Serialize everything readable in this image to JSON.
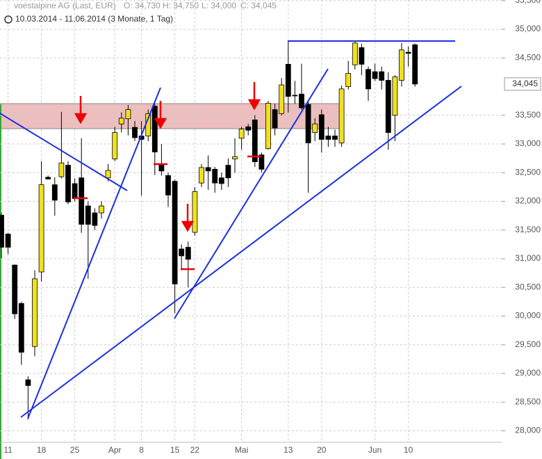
{
  "chart_data": {
    "type": "candlestick",
    "title": "voestalpine AG (Last, EUR)",
    "header_stats": [
      "O: 34,730",
      "H: 34,750",
      "L: 34,000",
      "C: 34,045"
    ],
    "subtitle": "10.03.2014 - 11.06.2014 (3 Monate, 1 Tag)",
    "categories": [
      null,
      "11",
      null,
      null,
      null,
      null,
      "18",
      null,
      null,
      null,
      null,
      "25",
      null,
      null,
      null,
      null,
      null,
      "Apr",
      null,
      null,
      null,
      "8",
      null,
      null,
      null,
      null,
      "15",
      null,
      null,
      "22",
      null,
      null,
      null,
      null,
      null,
      null,
      "Mai",
      null,
      null,
      null,
      null,
      null,
      null,
      "13",
      null,
      null,
      null,
      null,
      "20",
      null,
      null,
      null,
      null,
      null,
      null,
      null,
      "Jun",
      null,
      null,
      null,
      null,
      "10",
      null
    ],
    "open": [
      31760,
      31430,
      30890,
      30220,
      28890,
      29470,
      30770,
      32420,
      32290,
      32430,
      32630,
      32310,
      32410,
      31920,
      31800,
      31800,
      32410,
      32740,
      33350,
      33440,
      33290,
      33140,
      33140,
      33660,
      32650,
      32450,
      32350,
      31170,
      31200,
      31460,
      32320,
      32590,
      32560,
      32410,
      32630,
      32740,
      33100,
      33300,
      33420,
      32810,
      32920,
      33600,
      33530,
      34390,
      33850,
      33870,
      33690,
      33200,
      33510,
      33140,
      33140,
      33020,
      34000,
      34380,
      34680,
      34300,
      34260,
      34260,
      34110,
      33500,
      34110,
      34600,
      34730
    ],
    "high": [
      31800,
      31450,
      30900,
      30250,
      28950,
      30800,
      32700,
      32450,
      32420,
      33560,
      32700,
      32400,
      33100,
      32000,
      31880,
      32000,
      32650,
      33300,
      33550,
      33680,
      33400,
      33400,
      33600,
      33700,
      33000,
      32500,
      32380,
      31250,
      31300,
      32250,
      32650,
      32800,
      32600,
      32500,
      32750,
      33100,
      33300,
      33350,
      33500,
      32850,
      33750,
      33700,
      34150,
      34800,
      34100,
      34400,
      33750,
      33450,
      33600,
      33300,
      33250,
      34020,
      34450,
      34780,
      34750,
      34350,
      34400,
      34350,
      34250,
      34200,
      34760,
      34700,
      34750
    ],
    "low": [
      31000,
      31080,
      29950,
      29150,
      28200,
      29300,
      30600,
      32380,
      31750,
      32400,
      31950,
      32000,
      31450,
      30650,
      31500,
      31700,
      32350,
      32700,
      33200,
      33150,
      33050,
      32100,
      33050,
      32460,
      32450,
      31900,
      30050,
      30800,
      30500,
      31400,
      32250,
      32200,
      32150,
      32200,
      32250,
      32500,
      32900,
      33150,
      32600,
      32500,
      32900,
      33150,
      33500,
      33550,
      33700,
      33600,
      32150,
      33050,
      32850,
      32950,
      32950,
      32950,
      33950,
      34300,
      34200,
      33750,
      34100,
      33950,
      32900,
      33050,
      34000,
      34350,
      34000
    ],
    "close": [
      31200,
      31200,
      30040,
      29370,
      28790,
      30650,
      32290,
      32390,
      32020,
      32670,
      31990,
      32050,
      31600,
      31600,
      31580,
      31920,
      32540,
      33200,
      33450,
      33600,
      33110,
      33080,
      33530,
      32860,
      32530,
      32110,
      30560,
      31050,
      30990,
      32170,
      32590,
      32530,
      32320,
      32310,
      32410,
      32780,
      33260,
      33240,
      32690,
      32560,
      33710,
      33280,
      34030,
      33830,
      33840,
      33630,
      33020,
      33350,
      33080,
      33080,
      33080,
      33960,
      34230,
      34760,
      34390,
      33960,
      34140,
      34110,
      33200,
      34170,
      34640,
      34580,
      34045
    ],
    "up_color": "#f0e020",
    "down_color": "#000000",
    "ylim": [
      27800,
      35510
    ],
    "yticks": [
      {
        "value": 28000,
        "label": "28,000"
      },
      {
        "value": 28500,
        "label": "28,500"
      },
      {
        "value": 29000,
        "label": "29,000"
      },
      {
        "value": 29500,
        "label": "29,500"
      },
      {
        "value": 30000,
        "label": "30,000"
      },
      {
        "value": 30500,
        "label": "30,500"
      },
      {
        "value": 31000,
        "label": "31,000"
      },
      {
        "value": 31500,
        "label": "31,500"
      },
      {
        "value": 32000,
        "label": "32,000"
      },
      {
        "value": 32500,
        "label": "32,500"
      },
      {
        "value": 33000,
        "label": "33,000"
      },
      {
        "value": 33500,
        "label": "33,500"
      },
      {
        "value": 34500,
        "label": "34,500"
      },
      {
        "value": 35000,
        "label": "35,000"
      },
      {
        "value": 35500,
        "label": "35,500"
      }
    ],
    "last_price": {
      "value": 34045,
      "label": "34,045"
    },
    "grid": true
  }
}
